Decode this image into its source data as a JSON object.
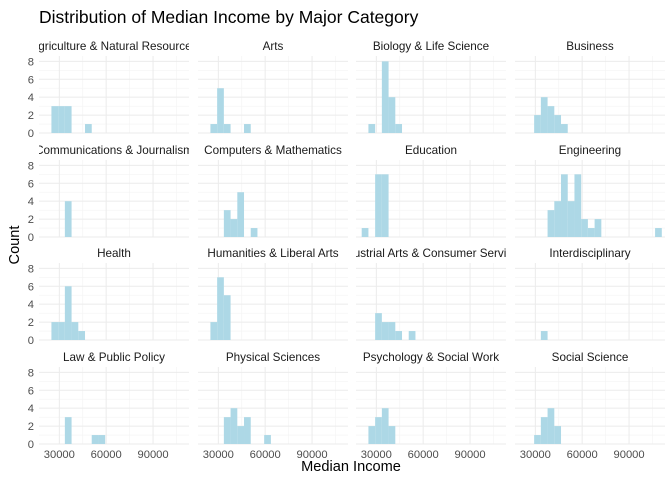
{
  "chart_data": {
    "type": "histogram",
    "title": "Distribution of Median Income by Major Category",
    "xlabel": "Median Income",
    "ylabel": "Count",
    "xlim": [
      17000,
      113000
    ],
    "ylim": [
      0,
      8.6
    ],
    "x_ticks": [
      30000,
      60000,
      90000
    ],
    "x_tick_labels": [
      "30000",
      "60000",
      "90000"
    ],
    "y_ticks": [
      0,
      2,
      4,
      6,
      8
    ],
    "y_tick_labels": [
      "0",
      "2",
      "4",
      "6",
      "8"
    ],
    "bin_width": 4300,
    "bin_start": 22800,
    "bar_color": "#add8e6",
    "grid": true,
    "facets": [
      {
        "label": "Agriculture & Natural Resources",
        "bins": [
          [
            27100,
            3
          ],
          [
            31400,
            3
          ],
          [
            35700,
            3
          ],
          [
            48600,
            1
          ]
        ]
      },
      {
        "label": "Arts",
        "bins": [
          [
            27100,
            1
          ],
          [
            31400,
            5
          ],
          [
            35700,
            1
          ],
          [
            48600,
            1
          ]
        ]
      },
      {
        "label": "Biology & Life Science",
        "bins": [
          [
            27100,
            1
          ],
          [
            35700,
            8
          ],
          [
            40000,
            4
          ],
          [
            44300,
            1
          ]
        ]
      },
      {
        "label": "Business",
        "bins": [
          [
            31400,
            2
          ],
          [
            35700,
            4
          ],
          [
            40000,
            3
          ],
          [
            44300,
            2
          ],
          [
            48600,
            1
          ]
        ]
      },
      {
        "label": "Communications & Journalism",
        "bins": [
          [
            35700,
            4
          ]
        ]
      },
      {
        "label": "Computers & Mathematics",
        "bins": [
          [
            35700,
            3
          ],
          [
            40000,
            2
          ],
          [
            44300,
            5
          ],
          [
            52900,
            1
          ]
        ]
      },
      {
        "label": "Education",
        "bins": [
          [
            22800,
            1
          ],
          [
            31400,
            7
          ],
          [
            35700,
            7
          ]
        ]
      },
      {
        "label": "Engineering",
        "bins": [
          [
            40000,
            3
          ],
          [
            44300,
            4
          ],
          [
            48600,
            7
          ],
          [
            52900,
            4
          ],
          [
            57200,
            7
          ],
          [
            61500,
            2
          ],
          [
            65800,
            1
          ],
          [
            70100,
            2
          ],
          [
            108800,
            1
          ]
        ]
      },
      {
        "label": "Health",
        "bins": [
          [
            27100,
            2
          ],
          [
            31400,
            2
          ],
          [
            35700,
            6
          ],
          [
            40000,
            2
          ],
          [
            44300,
            1
          ]
        ]
      },
      {
        "label": "Humanities & Liberal Arts",
        "bins": [
          [
            27100,
            2
          ],
          [
            31400,
            7
          ],
          [
            35700,
            5
          ]
        ]
      },
      {
        "label": "Industrial Arts & Consumer Services",
        "bins": [
          [
            31400,
            3
          ],
          [
            35700,
            2
          ],
          [
            40000,
            2
          ],
          [
            44300,
            1
          ],
          [
            52900,
            1
          ]
        ]
      },
      {
        "label": "Interdisciplinary",
        "bins": [
          [
            35700,
            1
          ]
        ]
      },
      {
        "label": "Law & Public Policy",
        "bins": [
          [
            35700,
            3
          ],
          [
            52900,
            1
          ],
          [
            57200,
            1
          ]
        ]
      },
      {
        "label": "Physical Sciences",
        "bins": [
          [
            35700,
            3
          ],
          [
            40000,
            4
          ],
          [
            44300,
            2
          ],
          [
            48600,
            3
          ],
          [
            61500,
            1
          ]
        ]
      },
      {
        "label": "Psychology & Social Work",
        "bins": [
          [
            27100,
            2
          ],
          [
            31400,
            3
          ],
          [
            35700,
            4
          ],
          [
            40000,
            2
          ]
        ]
      },
      {
        "label": "Social Science",
        "bins": [
          [
            31400,
            1
          ],
          [
            35700,
            3
          ],
          [
            40000,
            4
          ],
          [
            44300,
            2
          ]
        ]
      }
    ]
  }
}
